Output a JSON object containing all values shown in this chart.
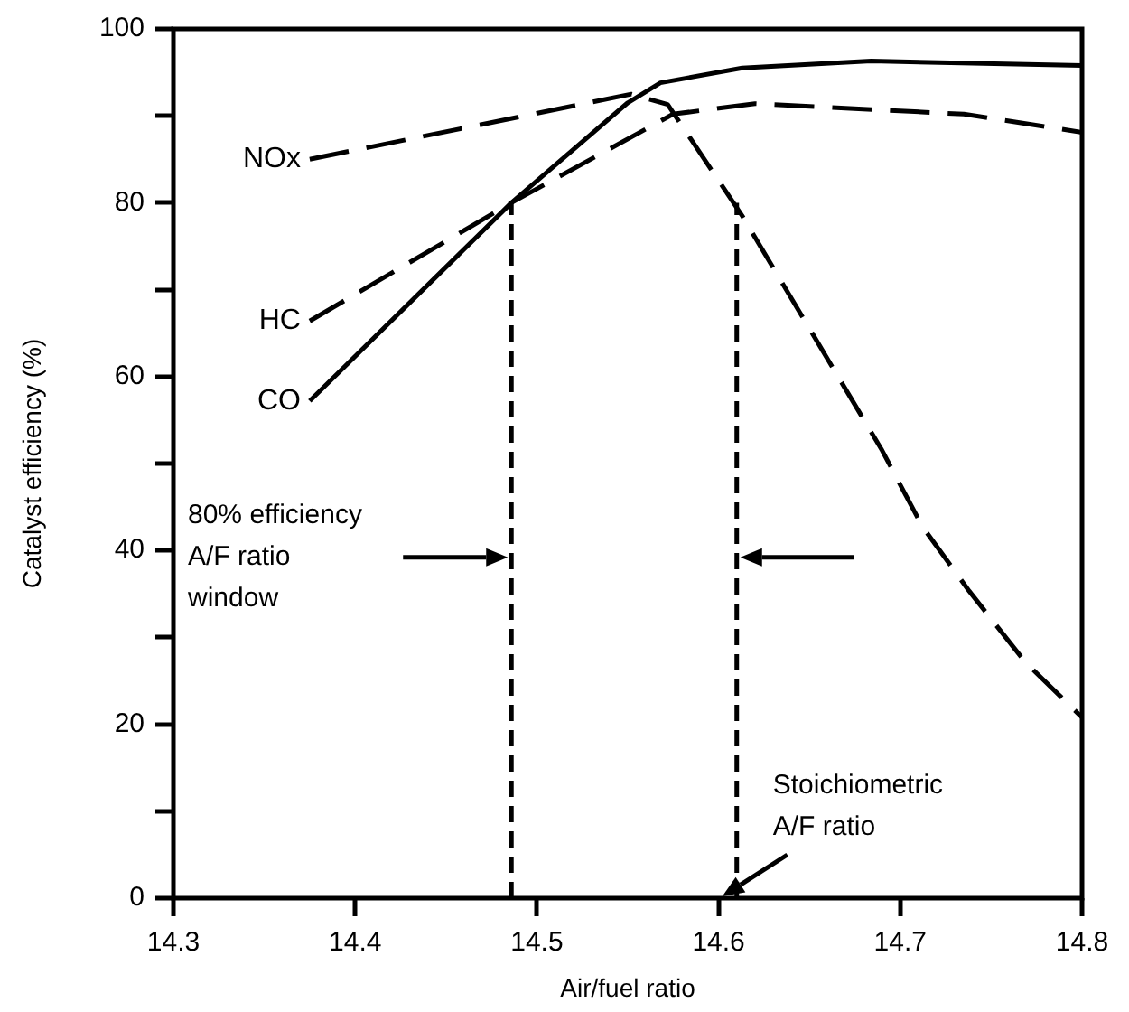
{
  "chart_data": {
    "type": "line",
    "xlabel": "Air/fuel ratio",
    "ylabel": "Catalyst efficiency (%)",
    "xlim": [
      14.3,
      14.8
    ],
    "xticks": [
      14.3,
      14.4,
      14.5,
      14.6,
      14.7,
      14.8
    ],
    "ylim": [
      0,
      100
    ],
    "yticks": [
      0,
      {
        "value": 10,
        "label": null
      },
      20,
      {
        "value": 30,
        "label": null
      },
      40,
      {
        "value": 50,
        "label": null
      },
      60,
      {
        "value": 70,
        "label": null
      },
      80,
      {
        "value": 90,
        "label": null
      },
      100
    ],
    "grid": false,
    "legend": false,
    "marker": "none",
    "series": [
      {
        "name": "NOx",
        "color": "#000000",
        "line_style": "dashed",
        "x": [
          14.375,
          14.552,
          14.572,
          14.613,
          14.69,
          14.712,
          14.738,
          14.769,
          14.8
        ],
        "values": [
          85,
          92.5,
          91.3,
          78.5,
          51.5,
          42.8,
          35.3,
          27.1,
          20.8
        ]
      },
      {
        "name": "HC",
        "color": "#000000",
        "line_style": "dashed",
        "x": [
          14.375,
          14.486,
          14.575,
          14.62,
          14.735,
          14.8
        ],
        "values": [
          66.4,
          80,
          90.2,
          91.4,
          90.2,
          88.1
        ]
      },
      {
        "name": "CO",
        "color": "#000000",
        "line_style": "solid",
        "x": [
          14.375,
          14.486,
          14.55,
          14.568,
          14.613,
          14.684,
          14.8
        ],
        "values": [
          57.2,
          80,
          91.5,
          93.8,
          95.5,
          96.3,
          95.8
        ]
      },
      {
        "color": "#000000",
        "line_style": "dotted",
        "x": [
          14.486,
          14.486
        ],
        "values": [
          0,
          80
        ]
      },
      {
        "color": "#000000",
        "line_style": "dotted",
        "x": [
          14.61,
          14.61
        ],
        "values": [
          0,
          80
        ]
      }
    ],
    "annotations": [
      "80% efficiency\nA/F ratio\nwindow",
      "Stoichiometric\nA/F ratio"
    ]
  }
}
